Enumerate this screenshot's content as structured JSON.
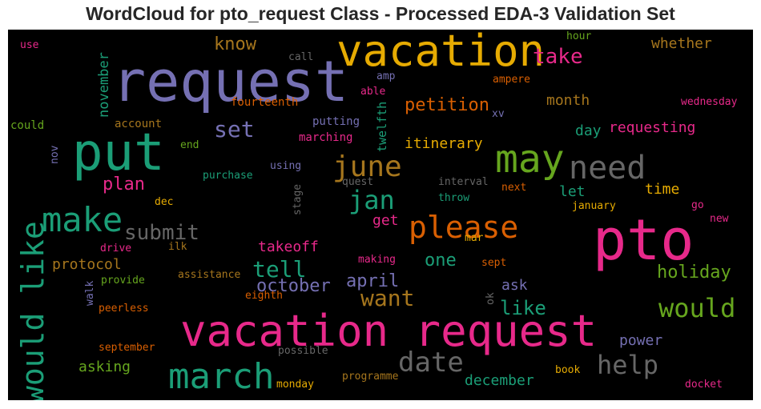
{
  "title": "WordCloud for pto_request Class - Processed EDA-3 Validation Set",
  "colors": {
    "green": "#1b9e77",
    "orange": "#d95f02",
    "purple": "#7570b3",
    "pink": "#e7298a",
    "lime": "#66a61e",
    "gold": "#e6ab02",
    "brown": "#a6761d",
    "gray": "#666666"
  },
  "words": [
    {
      "text": "request",
      "color": "#7570b3"
    },
    {
      "text": "vacation",
      "color": "#e6ab02"
    },
    {
      "text": "put",
      "color": "#1b9e77"
    },
    {
      "text": "vacation request",
      "color": "#e7298a"
    },
    {
      "text": "pto",
      "color": "#e7298a"
    },
    {
      "text": "march",
      "color": "#1b9e77"
    },
    {
      "text": "may",
      "color": "#66a61e"
    },
    {
      "text": "need",
      "color": "#666666"
    },
    {
      "text": "make",
      "color": "#1b9e77"
    },
    {
      "text": "would like",
      "color": "#1b9e77"
    },
    {
      "text": "please",
      "color": "#d95f02"
    },
    {
      "text": "june",
      "color": "#a6761d"
    },
    {
      "text": "jan",
      "color": "#1b9e77"
    },
    {
      "text": "would",
      "color": "#66a61e"
    },
    {
      "text": "date",
      "color": "#666666"
    },
    {
      "text": "help",
      "color": "#666666"
    },
    {
      "text": "submit",
      "color": "#666666"
    },
    {
      "text": "set",
      "color": "#7570b3"
    },
    {
      "text": "tell",
      "color": "#1b9e77"
    },
    {
      "text": "want",
      "color": "#a6761d"
    },
    {
      "text": "take",
      "color": "#e7298a"
    },
    {
      "text": "petition",
      "color": "#d95f02"
    },
    {
      "text": "know",
      "color": "#a6761d"
    },
    {
      "text": "october",
      "color": "#7570b3"
    },
    {
      "text": "april",
      "color": "#7570b3"
    },
    {
      "text": "holiday",
      "color": "#66a61e"
    },
    {
      "text": "like",
      "color": "#1b9e77"
    },
    {
      "text": "plan",
      "color": "#e7298a"
    },
    {
      "text": "one",
      "color": "#1b9e77"
    },
    {
      "text": "itinerary",
      "color": "#e6ab02"
    },
    {
      "text": "requesting",
      "color": "#e7298a"
    },
    {
      "text": "month",
      "color": "#a6761d"
    },
    {
      "text": "time",
      "color": "#e6ab02"
    },
    {
      "text": "day",
      "color": "#1b9e77"
    },
    {
      "text": "whether",
      "color": "#a6761d"
    },
    {
      "text": "takeoff",
      "color": "#e7298a"
    },
    {
      "text": "protocol",
      "color": "#a6761d"
    },
    {
      "text": "asking",
      "color": "#66a61e"
    },
    {
      "text": "december",
      "color": "#1b9e77"
    },
    {
      "text": "power",
      "color": "#7570b3"
    },
    {
      "text": "ask",
      "color": "#7570b3"
    },
    {
      "text": "let",
      "color": "#1b9e77"
    },
    {
      "text": "get",
      "color": "#e7298a"
    },
    {
      "text": "november",
      "color": "#1b9e77"
    },
    {
      "text": "twelfth",
      "color": "#1b9e77"
    },
    {
      "text": "fourteenth",
      "color": "#d95f02"
    },
    {
      "text": "putting",
      "color": "#7570b3"
    },
    {
      "text": "marching",
      "color": "#e7298a"
    },
    {
      "text": "account",
      "color": "#a6761d"
    },
    {
      "text": "could",
      "color": "#66a61e"
    },
    {
      "text": "use",
      "color": "#e7298a"
    },
    {
      "text": "hour",
      "color": "#66a61e"
    },
    {
      "text": "ampere",
      "color": "#d95f02"
    },
    {
      "text": "wednesday",
      "color": "#e7298a"
    },
    {
      "text": "call",
      "color": "#666666"
    },
    {
      "text": "amp",
      "color": "#7570b3"
    },
    {
      "text": "able",
      "color": "#e7298a"
    },
    {
      "text": "xv",
      "color": "#7570b3"
    },
    {
      "text": "end",
      "color": "#66a61e"
    },
    {
      "text": "nov",
      "color": "#7570b3"
    },
    {
      "text": "purchase",
      "color": "#1b9e77"
    },
    {
      "text": "using",
      "color": "#7570b3"
    },
    {
      "text": "quest",
      "color": "#666666"
    },
    {
      "text": "stage",
      "color": "#666666"
    },
    {
      "text": "interval",
      "color": "#666666"
    },
    {
      "text": "next",
      "color": "#d95f02"
    },
    {
      "text": "throw",
      "color": "#1b9e77"
    },
    {
      "text": "january",
      "color": "#e6ab02"
    },
    {
      "text": "go",
      "color": "#e7298a"
    },
    {
      "text": "new",
      "color": "#e7298a"
    },
    {
      "text": "dec",
      "color": "#e6ab02"
    },
    {
      "text": "drive",
      "color": "#e7298a"
    },
    {
      "text": "ilk",
      "color": "#a6761d"
    },
    {
      "text": "mar",
      "color": "#e6ab02"
    },
    {
      "text": "making",
      "color": "#e7298a"
    },
    {
      "text": "sept",
      "color": "#d95f02"
    },
    {
      "text": "provide",
      "color": "#66a61e"
    },
    {
      "text": "assistance",
      "color": "#a6761d"
    },
    {
      "text": "walk",
      "color": "#7570b3"
    },
    {
      "text": "eighth",
      "color": "#d95f02"
    },
    {
      "text": "ok",
      "color": "#666666"
    },
    {
      "text": "peerless",
      "color": "#d95f02"
    },
    {
      "text": "september",
      "color": "#d95f02"
    },
    {
      "text": "possible",
      "color": "#666666"
    },
    {
      "text": "monday",
      "color": "#e6ab02"
    },
    {
      "text": "programme",
      "color": "#a6761d"
    },
    {
      "text": "book",
      "color": "#e6ab02"
    },
    {
      "text": "docket",
      "color": "#e7298a"
    }
  ]
}
